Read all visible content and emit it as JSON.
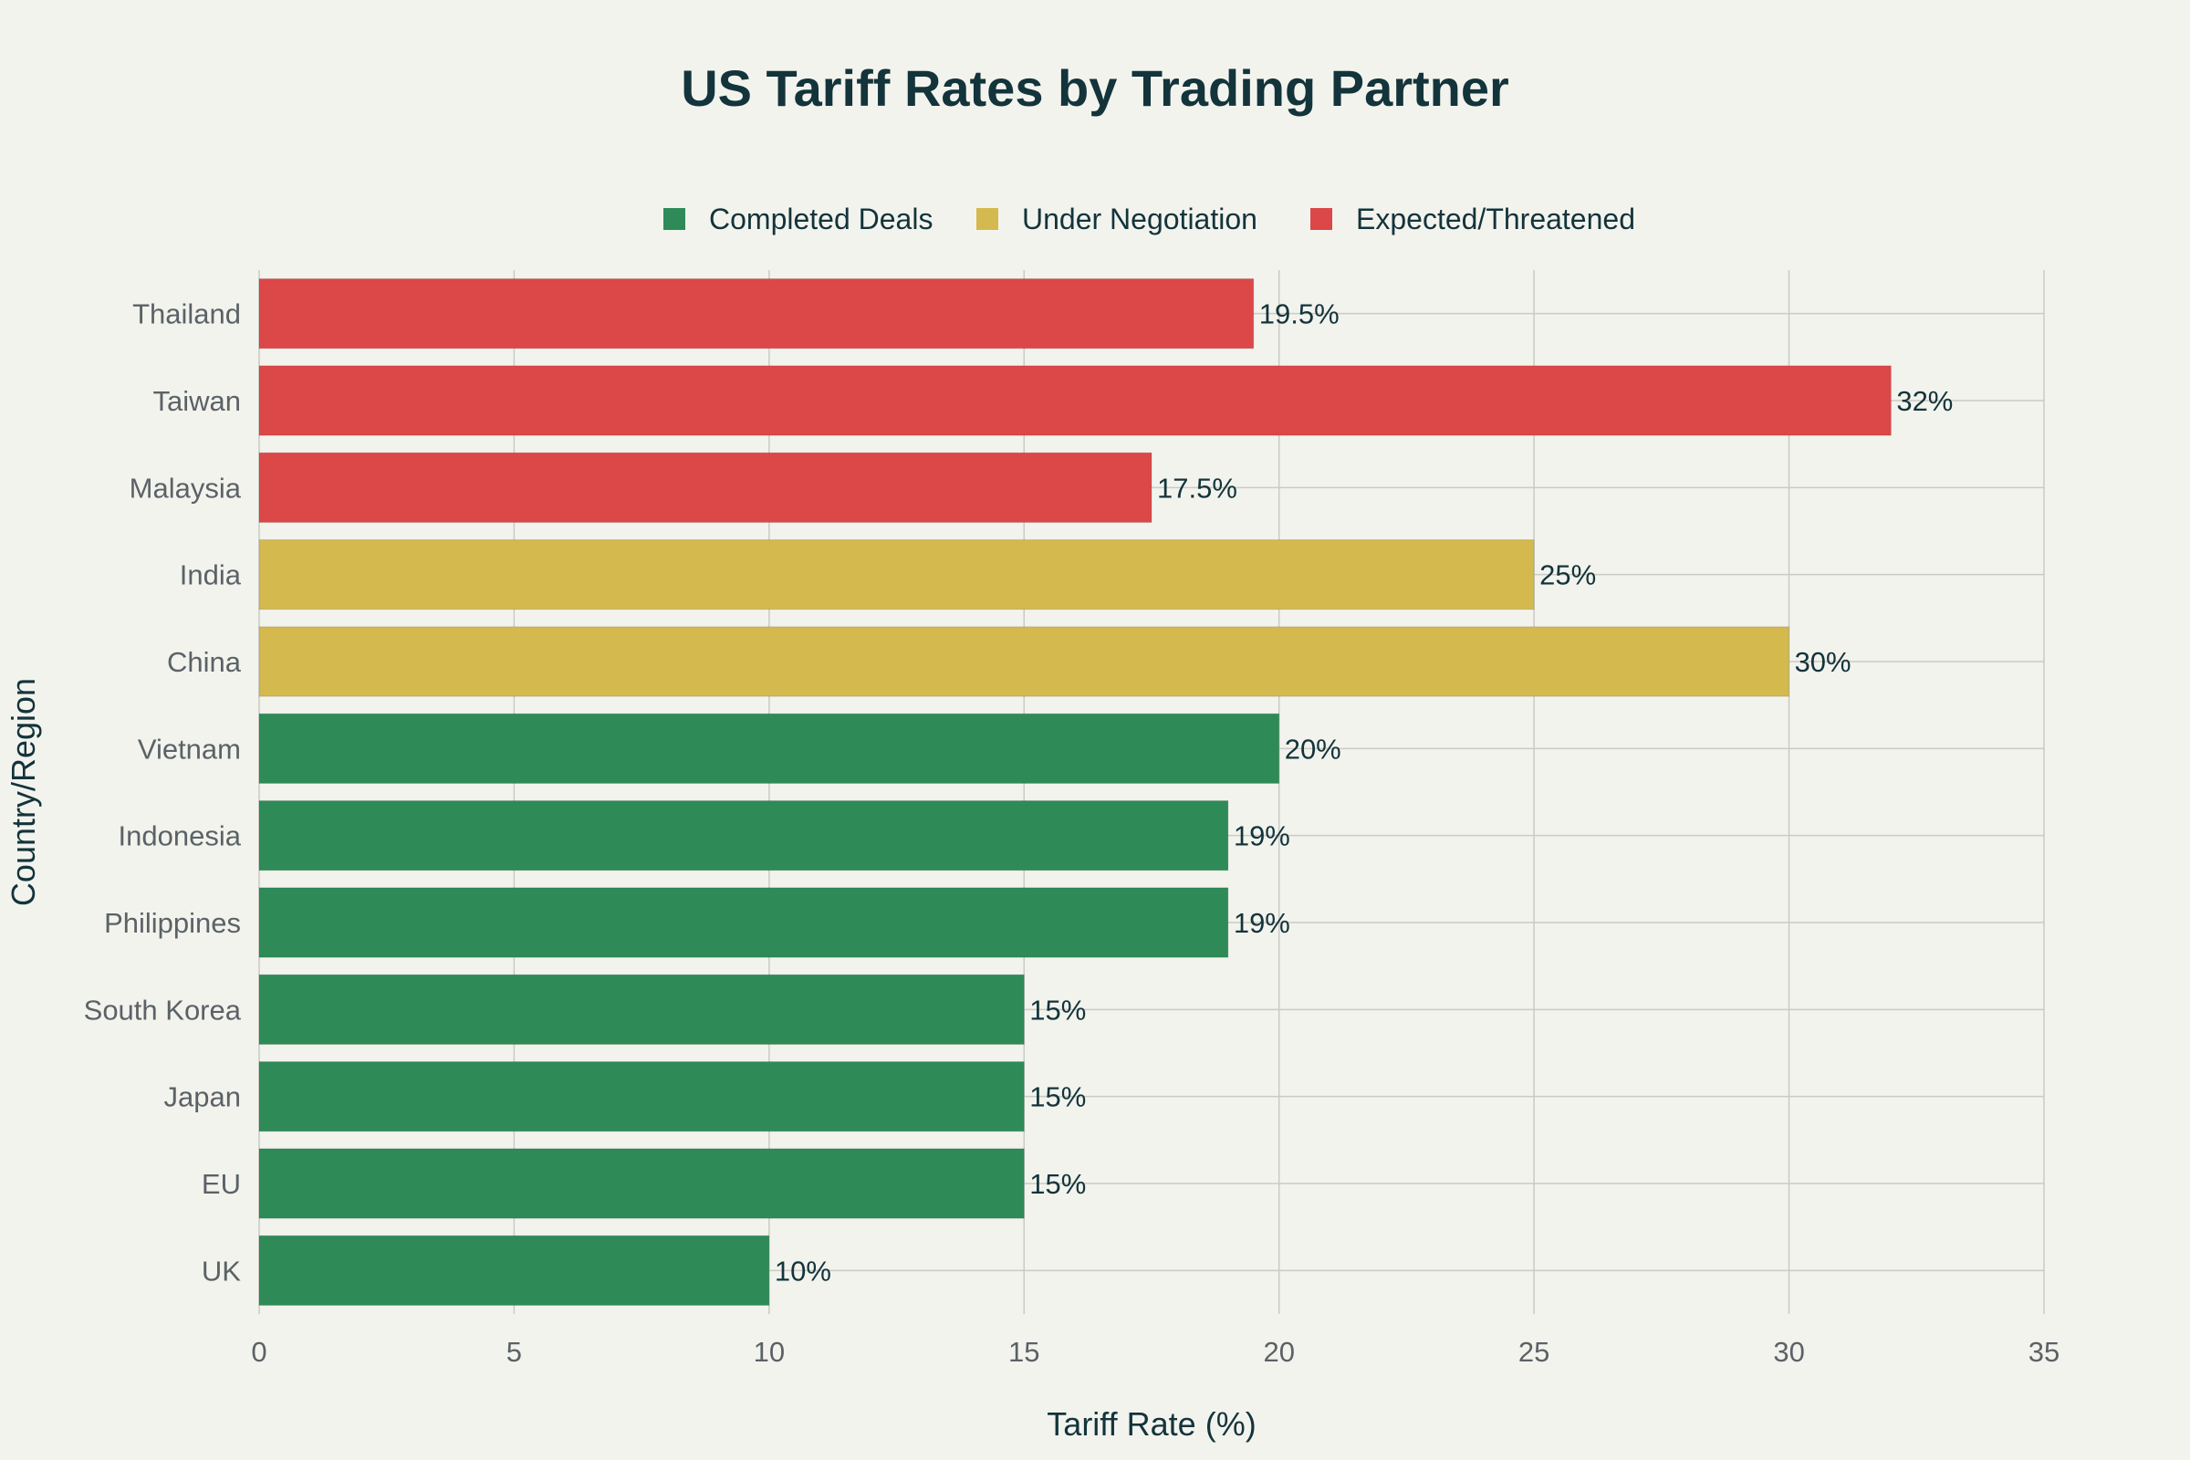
{
  "chart_data": {
    "type": "bar",
    "orientation": "horizontal",
    "title": "US Tariff Rates by Trading Partner",
    "xlabel": "Tariff Rate (%)",
    "ylabel": "Country/Region",
    "xlim": [
      0,
      35
    ],
    "x_ticks": [
      "0",
      "5",
      "10",
      "15",
      "20",
      "25",
      "30",
      "35"
    ],
    "grid": true,
    "legend_position": "top-center",
    "legend": [
      {
        "name": "Completed Deals",
        "color": "#2e8b57"
      },
      {
        "name": "Under Negotiation",
        "color": "#d4b94e"
      },
      {
        "name": "Expected/Threatened",
        "color": "#dc4748"
      }
    ],
    "categories": [
      "Thailand",
      "Taiwan",
      "Malaysia",
      "India",
      "China",
      "Vietnam",
      "Indonesia",
      "Philippines",
      "South Korea",
      "Japan",
      "EU",
      "UK"
    ],
    "values": [
      19.5,
      32,
      17.5,
      25,
      30,
      20,
      19,
      19,
      15,
      15,
      15,
      10
    ],
    "labels": [
      "19.5%",
      "32%",
      "17.5%",
      "25%",
      "30%",
      "20%",
      "19%",
      "19%",
      "15%",
      "15%",
      "15%",
      "10%"
    ],
    "groups": [
      "Expected/Threatened",
      "Expected/Threatened",
      "Expected/Threatened",
      "Under Negotiation",
      "Under Negotiation",
      "Completed Deals",
      "Completed Deals",
      "Completed Deals",
      "Completed Deals",
      "Completed Deals",
      "Completed Deals",
      "Completed Deals"
    ]
  }
}
